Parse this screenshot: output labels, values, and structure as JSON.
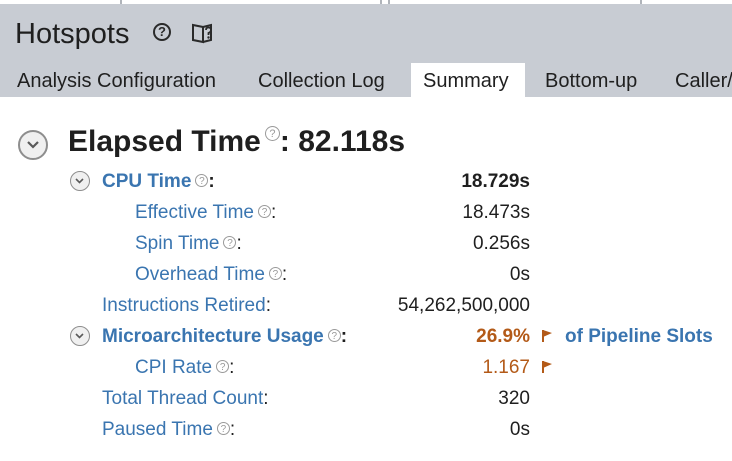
{
  "header": {
    "title": "Hotspots",
    "help_icon": "help-circle-icon",
    "guide_icon": "book-question-icon"
  },
  "tabs": [
    {
      "label": "Analysis Configuration",
      "active": false
    },
    {
      "label": "Collection Log",
      "active": false
    },
    {
      "label": "Summary",
      "active": true
    },
    {
      "label": "Bottom-up",
      "active": false
    },
    {
      "label": "Caller/",
      "active": false
    }
  ],
  "summary": {
    "elapsed_label": "Elapsed Time",
    "elapsed_sep": ":",
    "elapsed_value": "82.118s",
    "rows": [
      {
        "label": "CPU Time",
        "value": "18.729s"
      },
      {
        "label": "Effective Time",
        "value": "18.473s"
      },
      {
        "label": "Spin Time",
        "value": "0.256s"
      },
      {
        "label": "Overhead Time",
        "value": "0s"
      },
      {
        "label": "Instructions Retired",
        "value": "54,262,500,000"
      },
      {
        "label": "Microarchitecture Usage",
        "value": "26.9%",
        "suffix": "of Pipeline Slots"
      },
      {
        "label": "CPI Rate",
        "value": "1.167"
      },
      {
        "label": "Total Thread Count",
        "value": "320"
      },
      {
        "label": "Paused Time",
        "value": "0s"
      }
    ]
  },
  "colors": {
    "header_bg": "#c8ccd3",
    "link_blue": "#3a75b0",
    "warning_orange": "#b35a18"
  }
}
